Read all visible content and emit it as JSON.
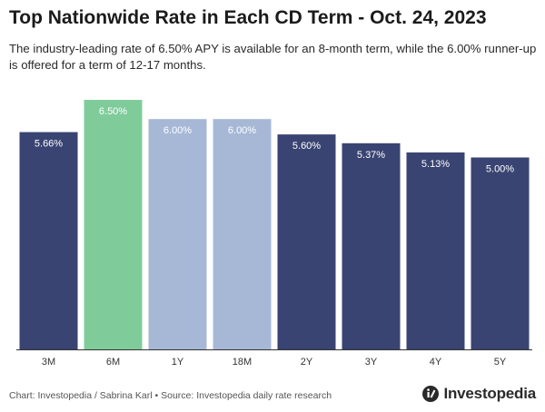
{
  "title": "Top Nationwide Rate in Each CD Term - Oct. 24, 2023",
  "subtitle": "The industry-leading rate of 6.50% APY is available for an 8-month term, while the 6.00% runner-up is offered for a term of 12-17 months.",
  "source": "Chart: Investopedia / Sabrina Karl • Source: Investopedia daily rate research",
  "brand": "Investopedia",
  "colors": {
    "default": "#3a4472",
    "highlight": "#7fcc9a",
    "runner_up": "#a7b8d6",
    "label_on_dark": "#ffffff",
    "label_on_light": "#ffffff",
    "axis": "#333333",
    "tick_text": "#333333"
  },
  "chart_data": {
    "type": "bar",
    "title": "Top Nationwide Rate in Each CD Term - Oct. 24, 2023",
    "xlabel": "",
    "ylabel": "",
    "ylim": [
      0,
      7.0
    ],
    "grid": false,
    "categories": [
      "3M",
      "6M",
      "1Y",
      "18M",
      "2Y",
      "3Y",
      "4Y",
      "5Y"
    ],
    "values": [
      5.66,
      6.5,
      6.0,
      6.0,
      5.6,
      5.37,
      5.13,
      5.0
    ],
    "value_labels": [
      "5.66%",
      "6.50%",
      "6.00%",
      "6.00%",
      "5.60%",
      "5.37%",
      "5.13%",
      "5.00%"
    ],
    "bar_color_keys": [
      "default",
      "highlight",
      "runner_up",
      "runner_up",
      "default",
      "default",
      "default",
      "default"
    ]
  }
}
